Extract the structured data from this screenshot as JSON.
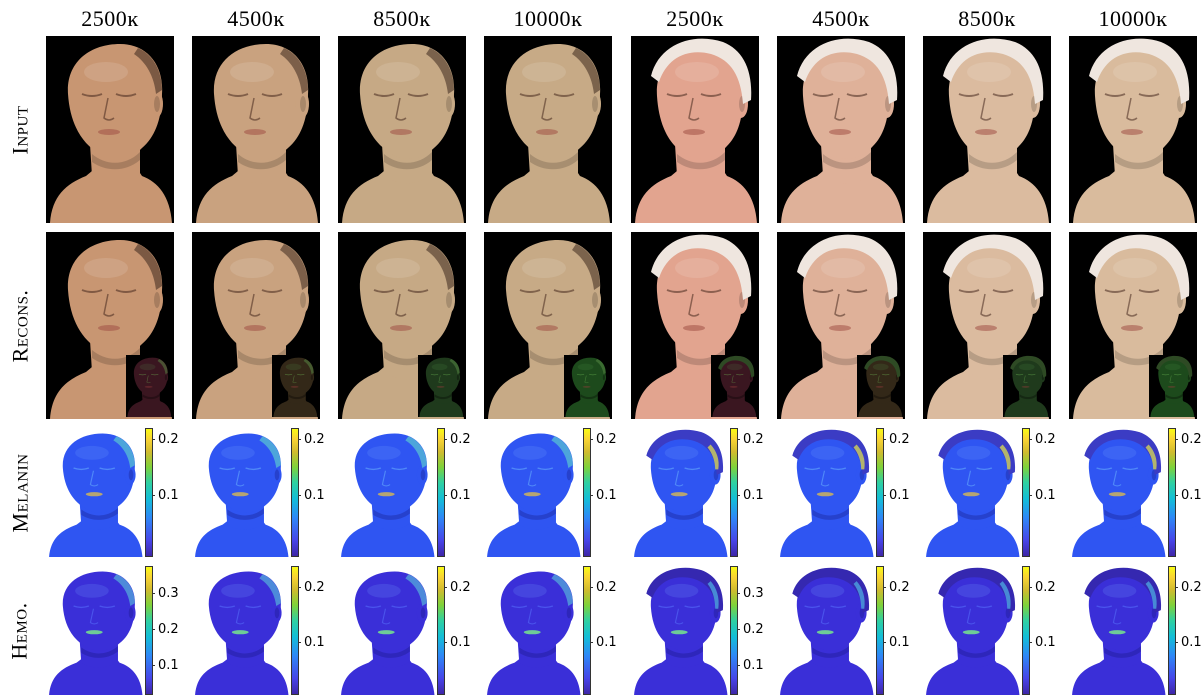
{
  "columns": [
    "2500ĸ",
    "4500ĸ",
    "8500ĸ",
    "10000ĸ",
    "2500ĸ",
    "4500ĸ",
    "8500ĸ",
    "10000ĸ"
  ],
  "rows": [
    "Input",
    "Recons.",
    "Melanin",
    "Hemo."
  ],
  "colors": {
    "background_black": "#000000",
    "skin_subject1_warm": "#c89672",
    "skin_subject1_cool": "#c7aa86",
    "skin_subject2_warm": "#e2a48f",
    "skin_subject2_cool": "#d9bb9d",
    "headband": "#efe6df",
    "map_low": "#3e26a8",
    "map_high": "#f9fb15"
  },
  "melanin_colorbars": [
    [
      "0.2",
      "0.1"
    ],
    [
      "0.2",
      "0.1"
    ],
    [
      "0.2",
      "0.1"
    ],
    [
      "0.2",
      "0.1"
    ],
    [
      "0.2",
      "0.1"
    ],
    [
      "0.2",
      "0.1"
    ],
    [
      "0.2",
      "0.1"
    ],
    [
      "0.2",
      "0.1"
    ]
  ],
  "hemo_colorbars": [
    [
      "0.3",
      "0.2",
      "0.1"
    ],
    [
      "0.2",
      "0.1"
    ],
    [
      "0.2",
      "0.1"
    ],
    [
      "0.2",
      "0.1"
    ],
    [
      "0.3",
      "0.2",
      "0.1"
    ],
    [
      "0.2",
      "0.1"
    ],
    [
      "0.2",
      "0.1"
    ],
    [
      "0.2",
      "0.1"
    ]
  ]
}
